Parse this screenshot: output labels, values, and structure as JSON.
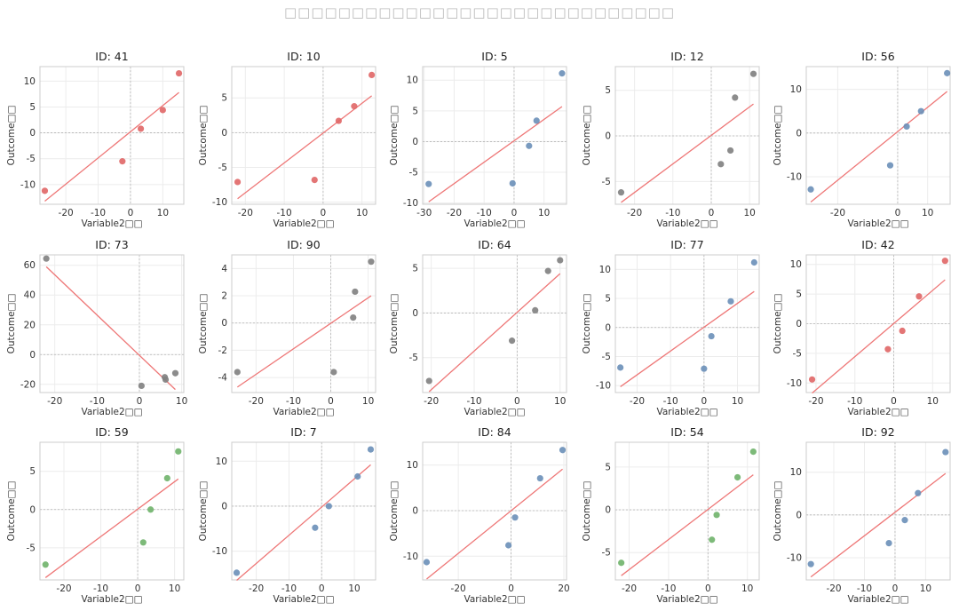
{
  "figure": {
    "title": "□□□□□□□□□□□□□□□□□□□□□□□□□□□□□"
  },
  "colors": {
    "red": "#e06666",
    "blue": "#6a8fb8",
    "gray": "#808080",
    "green": "#6fb36a",
    "fit_line": "#ee7777"
  },
  "chart_data": [
    {
      "type": "scatter",
      "title": "ID: 41",
      "xlabel": "Variable2□□",
      "ylabel": "Outcome□□",
      "xlim": [
        -28,
        16.5
      ],
      "ylim": [
        -13.8,
        12.8
      ],
      "xticks": [
        -20,
        -10,
        0,
        10
      ],
      "yticks": [
        -10,
        -5,
        0,
        5,
        10
      ],
      "point_color": "#e06666",
      "points": [
        [
          -26.5,
          -11.2
        ],
        [
          -2.5,
          -5.5
        ],
        [
          3.2,
          0.8
        ],
        [
          10,
          4.4
        ],
        [
          15,
          11.5
        ]
      ],
      "fit": [
        [
          -26.5,
          -13.2
        ],
        [
          15,
          7.8
        ]
      ]
    },
    {
      "type": "scatter",
      "title": "ID: 10",
      "xlabel": "Variable2□□",
      "ylabel": "Outcome□□",
      "xlim": [
        -23.5,
        13.5
      ],
      "ylim": [
        -10.3,
        9.5
      ],
      "xticks": [
        -20,
        -10,
        0,
        10
      ],
      "yticks": [
        -10,
        -5,
        0,
        5
      ],
      "point_color": "#e06666",
      "points": [
        [
          -22,
          -7.1
        ],
        [
          -2.2,
          -6.8
        ],
        [
          4,
          1.7
        ],
        [
          8,
          3.8
        ],
        [
          12.5,
          8.3
        ]
      ],
      "fit": [
        [
          -22,
          -9.5
        ],
        [
          12.5,
          5.3
        ]
      ]
    },
    {
      "type": "scatter",
      "title": "ID: 5",
      "xlabel": "Variable2□□",
      "ylabel": "Outcome□□",
      "xlim": [
        -30.5,
        17.5
      ],
      "ylim": [
        -10.2,
        12.2
      ],
      "xticks": [
        -30,
        -20,
        -10,
        0,
        10
      ],
      "yticks": [
        -10,
        -5,
        0,
        5,
        10
      ],
      "point_color": "#6a8fb8",
      "points": [
        [
          -28.5,
          -6.9
        ],
        [
          -0.5,
          -6.8
        ],
        [
          5,
          -0.7
        ],
        [
          7.5,
          3.4
        ],
        [
          16,
          11.1
        ]
      ],
      "fit": [
        [
          -28.5,
          -9.8
        ],
        [
          16,
          5.7
        ]
      ]
    },
    {
      "type": "scatter",
      "title": "ID: 12",
      "xlabel": "Variable2□□",
      "ylabel": "Outcome□□",
      "xlim": [
        -25,
        12.5
      ],
      "ylim": [
        -7.5,
        7.6
      ],
      "xticks": [
        -20,
        -10,
        0,
        10
      ],
      "yticks": [
        -5,
        0,
        5
      ],
      "point_color": "#808080",
      "points": [
        [
          -23.5,
          -6.2
        ],
        [
          2.5,
          -3.1
        ],
        [
          5,
          -1.6
        ],
        [
          6.2,
          4.2
        ],
        [
          11,
          6.8
        ]
      ],
      "fit": [
        [
          -23.5,
          -7.3
        ],
        [
          11,
          3.5
        ]
      ]
    },
    {
      "type": "scatter",
      "title": "ID: 56",
      "xlabel": "Variable2□□",
      "ylabel": "Outcome□□",
      "xlim": [
        -30.5,
        17.5
      ],
      "ylim": [
        -16.3,
        15.2
      ],
      "xticks": [
        -20,
        0,
        10
      ],
      "yticks": [
        -10,
        0,
        10
      ],
      "point_color": "#6a8fb8",
      "points": [
        [
          -29,
          -12.9
        ],
        [
          -2.5,
          -7.4
        ],
        [
          3,
          1.5
        ],
        [
          7.8,
          5
        ],
        [
          16.5,
          13.7
        ]
      ],
      "fit": [
        [
          -29,
          -15.8
        ],
        [
          16.5,
          9.5
        ]
      ]
    },
    {
      "type": "scatter",
      "title": "ID: 73",
      "xlabel": "Variable2□□",
      "ylabel": "Outcome□□",
      "xlim": [
        -23.5,
        10.5
      ],
      "ylim": [
        -25.5,
        67
      ],
      "xticks": [
        -20,
        -10,
        0,
        10
      ],
      "yticks": [
        -20,
        0,
        20,
        40,
        60
      ],
      "point_color": "#808080",
      "points": [
        [
          -22,
          64.5
        ],
        [
          0.5,
          -21
        ],
        [
          6,
          -15.2
        ],
        [
          6.2,
          -16.8
        ],
        [
          8.5,
          -12.5
        ]
      ],
      "fit": [
        [
          -22,
          59
        ],
        [
          8.5,
          -23.5
        ]
      ]
    },
    {
      "type": "scatter",
      "title": "ID: 90",
      "xlabel": "Variable2□□",
      "ylabel": "Outcome□□",
      "xlim": [
        -26.5,
        12
      ],
      "ylim": [
        -5.1,
        5
      ],
      "xticks": [
        -20,
        -10,
        0,
        10
      ],
      "yticks": [
        -4,
        -2,
        0,
        2,
        4
      ],
      "point_color": "#808080",
      "points": [
        [
          -25,
          -3.6
        ],
        [
          0.8,
          -3.6
        ],
        [
          6,
          0.4
        ],
        [
          6.5,
          2.3
        ],
        [
          10.8,
          4.5
        ]
      ],
      "fit": [
        [
          -25,
          -4.7
        ],
        [
          10.8,
          2
        ]
      ]
    },
    {
      "type": "scatter",
      "title": "ID: 64",
      "xlabel": "Variable2□□",
      "ylabel": "Outcome□□",
      "xlim": [
        -22,
        11.5
      ],
      "ylim": [
        -8.9,
        6.5
      ],
      "xticks": [
        -20,
        -10,
        0,
        10
      ],
      "yticks": [
        -5,
        0,
        5
      ],
      "point_color": "#808080",
      "points": [
        [
          -20.5,
          -7.6
        ],
        [
          -1.2,
          -3.1
        ],
        [
          4.2,
          0.3
        ],
        [
          7.2,
          4.7
        ],
        [
          10,
          5.9
        ]
      ],
      "fit": [
        [
          -20.5,
          -8.8
        ],
        [
          10,
          4.4
        ]
      ]
    },
    {
      "type": "scatter",
      "title": "ID: 77",
      "xlabel": "Variable2□□",
      "ylabel": "Outcome□□",
      "xlim": [
        -26.5,
        16.5
      ],
      "ylim": [
        -11.2,
        12.5
      ],
      "xticks": [
        -20,
        -10,
        0,
        10
      ],
      "yticks": [
        -10,
        -5,
        0,
        5,
        10
      ],
      "point_color": "#6a8fb8",
      "points": [
        [
          -25,
          -6.9
        ],
        [
          0,
          -7.1
        ],
        [
          2.2,
          -1.5
        ],
        [
          8,
          4.5
        ],
        [
          15,
          11.2
        ]
      ],
      "fit": [
        [
          -25,
          -10.2
        ],
        [
          15,
          6.2
        ]
      ]
    },
    {
      "type": "scatter",
      "title": "ID: 42",
      "xlabel": "Variable2□□",
      "ylabel": "Outcome□□",
      "xlim": [
        -22.5,
        14.5
      ],
      "ylim": [
        -11.6,
        11.6
      ],
      "xticks": [
        -20,
        -10,
        0,
        10
      ],
      "yticks": [
        -10,
        -5,
        0,
        5,
        10
      ],
      "point_color": "#e06666",
      "points": [
        [
          -21,
          -9.4
        ],
        [
          -1.5,
          -4.3
        ],
        [
          2.2,
          -1.2
        ],
        [
          6.5,
          4.6
        ],
        [
          13.2,
          10.6
        ]
      ],
      "fit": [
        [
          -21,
          -11.7
        ],
        [
          13.2,
          7.4
        ]
      ]
    },
    {
      "type": "scatter",
      "title": "ID: 59",
      "xlabel": "Variable2□□",
      "ylabel": "Outcome□□",
      "xlim": [
        -26.5,
        12.5
      ],
      "ylim": [
        -9.2,
        8.8
      ],
      "xticks": [
        -20,
        -10,
        0,
        10
      ],
      "yticks": [
        -5,
        0,
        5
      ],
      "point_color": "#6fb36a",
      "points": [
        [
          -25,
          -7.2
        ],
        [
          1.5,
          -4.3
        ],
        [
          3.5,
          0
        ],
        [
          8,
          4.1
        ],
        [
          11,
          7.6
        ]
      ],
      "fit": [
        [
          -25,
          -8.9
        ],
        [
          11,
          4
        ]
      ]
    },
    {
      "type": "scatter",
      "title": "ID: 7",
      "xlabel": "Variable2□□",
      "ylabel": "Outcome□□",
      "xlim": [
        -27.5,
        16.5
      ],
      "ylim": [
        -16.4,
        14.2
      ],
      "xticks": [
        -20,
        -10,
        0,
        10
      ],
      "yticks": [
        -10,
        0,
        10
      ],
      "point_color": "#6a8fb8",
      "points": [
        [
          -26,
          -14.8
        ],
        [
          -2,
          -4.8
        ],
        [
          2.2,
          0
        ],
        [
          11,
          6.6
        ],
        [
          15,
          12.6
        ]
      ],
      "fit": [
        [
          -26,
          -16.5
        ],
        [
          15,
          9.2
        ]
      ]
    },
    {
      "type": "scatter",
      "title": "ID: 84",
      "xlabel": "Variable2□□",
      "ylabel": "Outcome□□",
      "xlim": [
        -33.5,
        21
      ],
      "ylim": [
        -15.2,
        15
      ],
      "xticks": [
        -20,
        0,
        20
      ],
      "yticks": [
        -10,
        0,
        10
      ],
      "point_color": "#6a8fb8",
      "points": [
        [
          -32,
          -11.3
        ],
        [
          -1,
          -7.6
        ],
        [
          1.5,
          -1.5
        ],
        [
          11,
          7.1
        ],
        [
          19.5,
          13.3
        ]
      ],
      "fit": [
        [
          -32,
          -15
        ],
        [
          19.5,
          9.1
        ]
      ]
    },
    {
      "type": "scatter",
      "title": "ID: 54",
      "xlabel": "Variable2□□",
      "ylabel": "Outcome□□",
      "xlim": [
        -23.5,
        13
      ],
      "ylim": [
        -8.2,
        7.9
      ],
      "xticks": [
        -20,
        -10,
        0,
        10
      ],
      "yticks": [
        -5,
        0,
        5
      ],
      "point_color": "#6fb36a",
      "points": [
        [
          -22,
          -6.2
        ],
        [
          1,
          -3.5
        ],
        [
          2.2,
          -0.6
        ],
        [
          7.5,
          3.8
        ],
        [
          11.5,
          6.8
        ]
      ],
      "fit": [
        [
          -22,
          -7.7
        ],
        [
          11.5,
          4.1
        ]
      ]
    },
    {
      "type": "scatter",
      "title": "ID: 92",
      "xlabel": "Variable2□□",
      "ylabel": "Outcome□□",
      "xlim": [
        -29,
        18
      ],
      "ylim": [
        -15.2,
        17
      ],
      "xticks": [
        -20,
        -10,
        0,
        10
      ],
      "yticks": [
        -10,
        0,
        10
      ],
      "point_color": "#6a8fb8",
      "points": [
        [
          -27.5,
          -11.5
        ],
        [
          -2,
          -6.6
        ],
        [
          3.2,
          -1.2
        ],
        [
          7.5,
          5.1
        ],
        [
          16.5,
          14.7
        ]
      ],
      "fit": [
        [
          -27.5,
          -14.5
        ],
        [
          16.5,
          9.7
        ]
      ]
    }
  ]
}
